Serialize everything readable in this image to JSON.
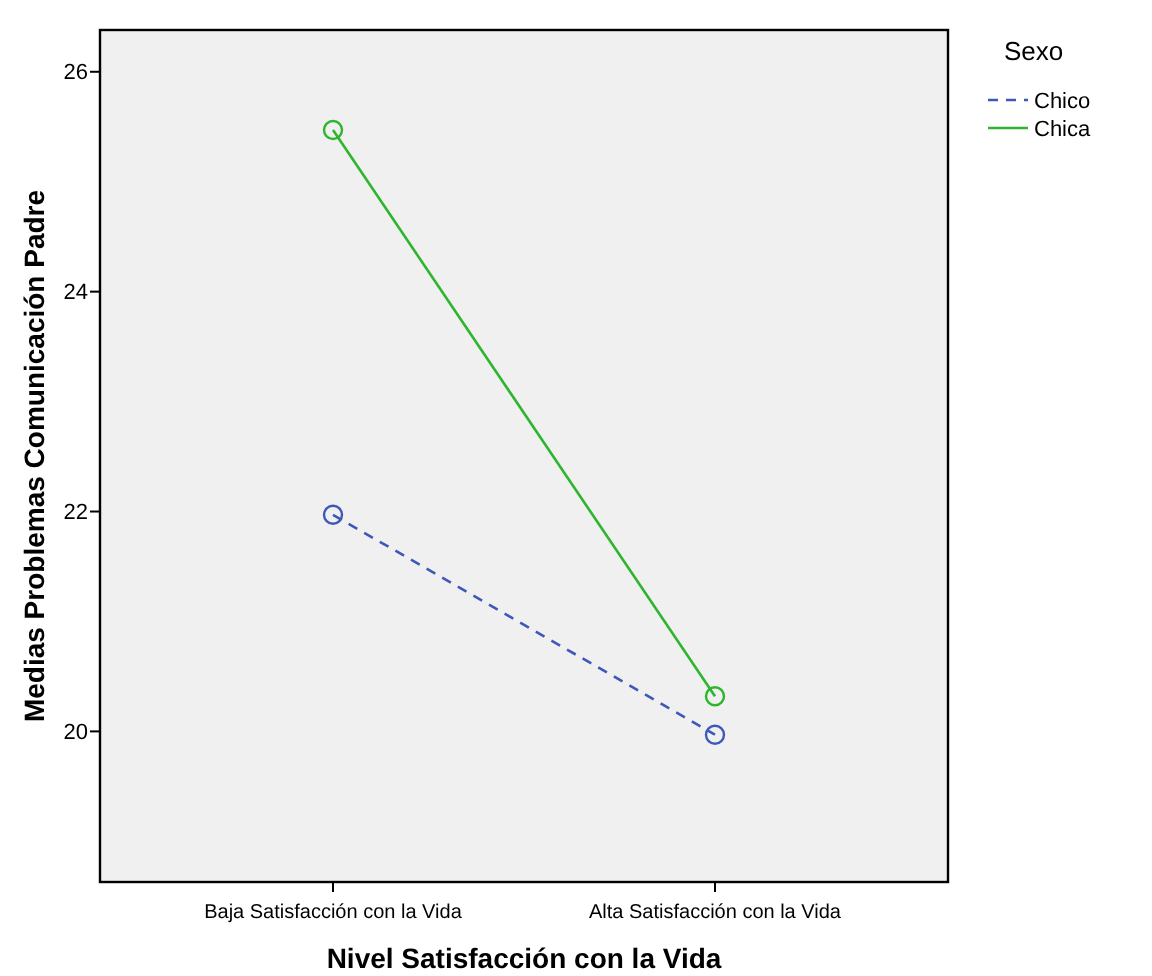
{
  "chart_data": {
    "type": "line",
    "xlabel": "Nivel Satisfacción con la Vida",
    "ylabel": "Medias Problemas Comunicación Padre",
    "legend_title": "Sexo",
    "legend": "top right",
    "marker": "circle",
    "grid": false,
    "categories": [
      "Baja Satisfacción con la Vida",
      "Alta Satisfacción con la Vida"
    ],
    "ylim": [
      18.63,
      26.38
    ],
    "yticks": [
      20,
      22,
      24,
      26
    ],
    "series": [
      {
        "name": "Chico",
        "color": "#3e58ba",
        "values": [
          21.97,
          19.97
        ],
        "line_style": "dashed"
      },
      {
        "name": "Chica",
        "color": "#2db52d",
        "values": [
          25.47,
          20.32
        ],
        "line_style": "solid"
      }
    ]
  }
}
